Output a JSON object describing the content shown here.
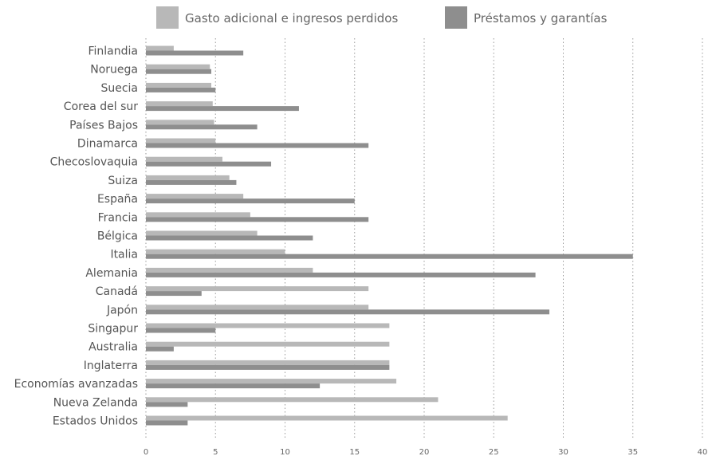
{
  "chart_data": {
    "type": "bar",
    "orientation": "horizontal",
    "categories": [
      "Finlandia",
      "Noruega",
      "Suecia",
      "Corea del sur",
      "Países Bajos",
      "Dinamarca",
      "Checoslovaquia",
      "Suiza",
      "España",
      "Francia",
      "Bélgica",
      "Italia",
      "Alemania",
      "Canadá",
      "Japón",
      "Singapur",
      "Australia",
      "Inglaterra",
      "Economías avanzadas",
      "Nueva Zelanda",
      "Estados Unidos"
    ],
    "series": [
      {
        "name": "Gasto adicional e ingresos perdidos",
        "color": "#b8b8b8",
        "values": [
          2,
          4.6,
          4.7,
          4.8,
          4.9,
          5,
          5.5,
          6,
          7,
          7.5,
          8,
          10,
          12,
          16,
          16,
          17.5,
          17.5,
          17.5,
          18,
          21,
          26
        ]
      },
      {
        "name": "Préstamos y garantías",
        "color": "#8e8e8e",
        "values": [
          7,
          4.7,
          5,
          11,
          8,
          16,
          9,
          6.5,
          15,
          16,
          12,
          35,
          28,
          4,
          29,
          5,
          2,
          17.5,
          12.5,
          3,
          3
        ]
      }
    ],
    "xlim": [
      0,
      40
    ],
    "xticks": [
      "0",
      "5",
      "10",
      "15",
      "20",
      "25",
      "30",
      "35",
      "40"
    ],
    "grid": "vertical dotted",
    "legend": "top"
  }
}
